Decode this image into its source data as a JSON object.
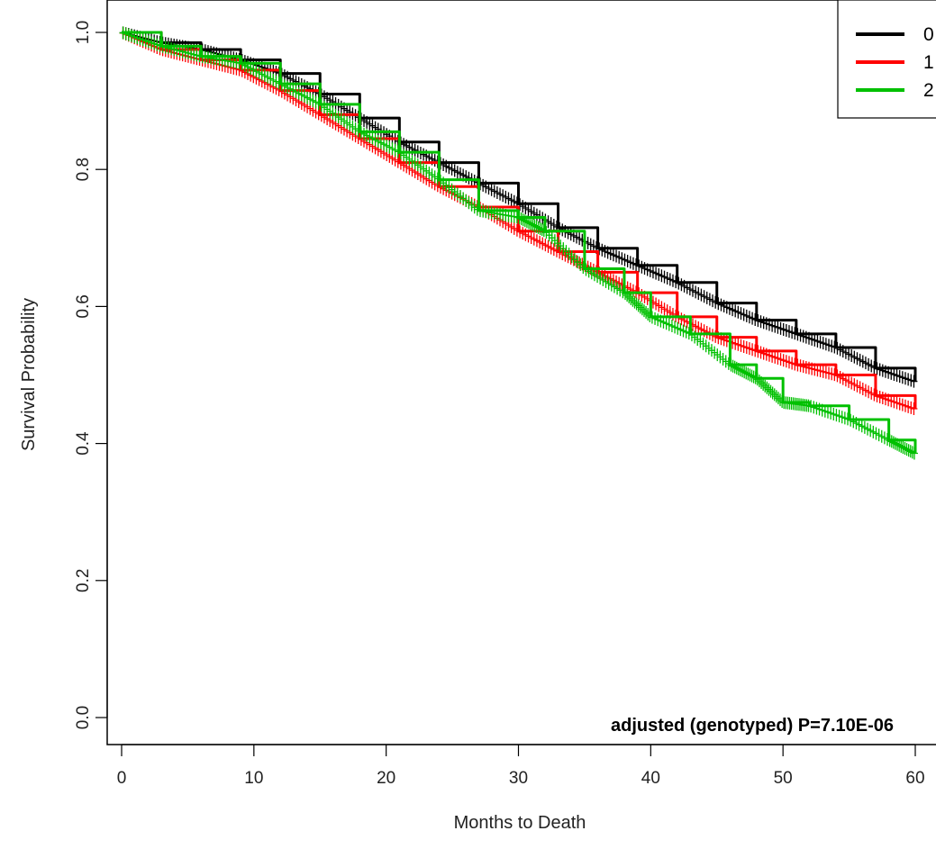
{
  "chart_data": {
    "type": "line",
    "xlabel": "Months to Death",
    "ylabel": "Survival Probability",
    "xlim": [
      0,
      60
    ],
    "ylim": [
      0,
      1
    ],
    "x_ticks": [
      "0",
      "10",
      "20",
      "30",
      "40",
      "50",
      "60"
    ],
    "y_ticks": [
      "0.0",
      "0.2",
      "0.4",
      "0.6",
      "0.8",
      "1.0"
    ],
    "annotation": "adjusted (genotyped) P=7.10E-06",
    "legend_position": "top-right",
    "grid": false,
    "series": [
      {
        "name": "0",
        "color": "#000000",
        "x": [
          0,
          3,
          6,
          9,
          12,
          15,
          18,
          21,
          24,
          27,
          30,
          33,
          36,
          39,
          42,
          45,
          48,
          51,
          54,
          57,
          60
        ],
        "y": [
          1.0,
          0.985,
          0.975,
          0.96,
          0.94,
          0.91,
          0.875,
          0.84,
          0.81,
          0.78,
          0.75,
          0.715,
          0.685,
          0.66,
          0.635,
          0.605,
          0.58,
          0.56,
          0.54,
          0.51,
          0.49
        ]
      },
      {
        "name": "1",
        "color": "#ff0000",
        "x": [
          0,
          3,
          6,
          9,
          12,
          15,
          18,
          21,
          24,
          27,
          30,
          33,
          36,
          39,
          42,
          45,
          48,
          51,
          54,
          57,
          60
        ],
        "y": [
          1.0,
          0.975,
          0.96,
          0.945,
          0.915,
          0.88,
          0.845,
          0.81,
          0.775,
          0.745,
          0.71,
          0.68,
          0.65,
          0.62,
          0.585,
          0.555,
          0.535,
          0.515,
          0.5,
          0.47,
          0.45
        ]
      },
      {
        "name": "2",
        "color": "#00c000",
        "x": [
          0,
          3,
          6,
          9,
          12,
          15,
          18,
          21,
          24,
          27,
          30,
          32,
          35,
          38,
          40,
          43,
          46,
          48,
          50,
          52,
          55,
          58,
          60
        ],
        "y": [
          1.0,
          0.98,
          0.965,
          0.955,
          0.925,
          0.895,
          0.855,
          0.825,
          0.785,
          0.74,
          0.73,
          0.71,
          0.655,
          0.62,
          0.585,
          0.56,
          0.515,
          0.495,
          0.46,
          0.455,
          0.435,
          0.405,
          0.385
        ]
      }
    ]
  }
}
